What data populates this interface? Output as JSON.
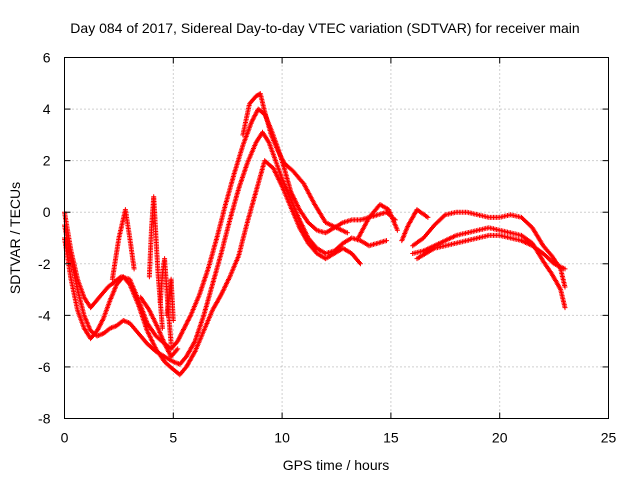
{
  "chart_data": {
    "type": "scatter",
    "title": "Day 084 of 2017, Sidereal Day-to-day VTEC variation (SDTVAR) for receiver main",
    "xlabel": "GPS time / hours",
    "ylabel": "SDTVAR / TECUs",
    "xlim": [
      0,
      25
    ],
    "ylim": [
      -8,
      6
    ],
    "xticks": [
      0,
      5,
      10,
      15,
      20,
      25
    ],
    "xtick_labels": [
      "0",
      "5",
      "10",
      "15",
      "20",
      "25"
    ],
    "yticks": [
      -8,
      -6,
      -4,
      -2,
      0,
      2,
      4,
      6
    ],
    "ytick_labels": [
      "-8",
      "-6",
      "-4",
      "-2",
      "0",
      "2",
      "4",
      "6"
    ],
    "grid": true,
    "marker": "+",
    "series": [
      {
        "name": "track-1",
        "color": "#ff0000",
        "x": [
          0.0,
          0.3,
          0.6,
          0.9,
          1.2,
          1.4,
          1.7,
          2.0,
          2.3,
          2.6,
          3.0,
          3.4,
          3.8,
          4.2,
          4.6,
          4.9,
          5.2,
          5.5,
          5.8,
          6.2,
          6.6,
          7.0,
          7.4,
          7.8,
          8.2,
          8.6,
          8.9,
          9.2,
          9.5,
          9.8,
          10.1,
          10.4,
          10.8,
          11.2,
          11.6,
          12.0,
          12.4,
          12.8,
          13.2,
          13.6,
          14.0,
          14.4,
          14.8,
          15.2
        ],
        "y": [
          0.0,
          -1.5,
          -2.6,
          -3.3,
          -3.7,
          -3.5,
          -3.2,
          -2.9,
          -2.7,
          -2.5,
          -2.6,
          -3.4,
          -4.3,
          -4.8,
          -5.1,
          -5.3,
          -5.0,
          -4.5,
          -4.0,
          -3.2,
          -2.2,
          -1.0,
          0.3,
          1.5,
          2.6,
          3.5,
          4.0,
          3.8,
          3.2,
          2.5,
          1.7,
          0.8,
          0.1,
          -0.4,
          -0.7,
          -0.8,
          -0.6,
          -0.4,
          -0.3,
          -0.3,
          -0.2,
          -0.1,
          0.0,
          -0.3
        ]
      },
      {
        "name": "track-2",
        "color": "#ff0000",
        "x": [
          0.0,
          0.3,
          0.6,
          0.9,
          1.2,
          1.5,
          1.8,
          2.1,
          2.4,
          2.7,
          3.0,
          3.4,
          3.8,
          4.2,
          4.6,
          5.0,
          5.3,
          5.6,
          6.0,
          6.4,
          6.8,
          7.2,
          7.6,
          8.0,
          8.4,
          8.8,
          9.1,
          9.4,
          9.7,
          10.0,
          10.4,
          10.8,
          11.2,
          11.6,
          12.0,
          12.4,
          12.8,
          13.2,
          13.6,
          14.0,
          14.4,
          14.8
        ],
        "y": [
          -0.5,
          -1.8,
          -3.0,
          -4.0,
          -4.6,
          -4.8,
          -4.7,
          -4.5,
          -4.4,
          -4.2,
          -4.3,
          -4.7,
          -5.1,
          -5.4,
          -5.6,
          -5.8,
          -5.9,
          -5.6,
          -5.0,
          -4.0,
          -2.8,
          -1.6,
          -0.3,
          0.9,
          1.9,
          2.7,
          3.1,
          2.7,
          2.0,
          1.3,
          0.5,
          -0.3,
          -1.0,
          -1.4,
          -1.6,
          -1.5,
          -1.2,
          -1.0,
          -1.1,
          -1.3,
          -1.2,
          -1.1
        ]
      },
      {
        "name": "track-3",
        "color": "#ff0000",
        "x": [
          0.0,
          0.3,
          0.6,
          0.9,
          1.2,
          1.5,
          1.8,
          2.1,
          2.4,
          2.7,
          3.0,
          3.4,
          3.8,
          4.2,
          4.6,
          5.0,
          5.3,
          5.6,
          6.0,
          6.4,
          6.8,
          7.2,
          7.6,
          8.0,
          8.4,
          8.8,
          9.2,
          9.6,
          10.0,
          10.4,
          10.8,
          11.2,
          11.6,
          12.0,
          12.4,
          12.8,
          13.2,
          13.6
        ],
        "y": [
          -1.0,
          -2.6,
          -3.8,
          -4.5,
          -4.9,
          -4.6,
          -4.1,
          -3.4,
          -2.8,
          -2.5,
          -2.8,
          -3.6,
          -4.6,
          -5.3,
          -5.8,
          -6.1,
          -6.3,
          -6.0,
          -5.4,
          -4.6,
          -3.8,
          -3.2,
          -2.5,
          -1.7,
          -0.4,
          0.8,
          2.0,
          1.7,
          1.0,
          0.2,
          -0.6,
          -1.2,
          -1.6,
          -1.8,
          -1.6,
          -1.4,
          -1.6,
          -2.0
        ]
      },
      {
        "name": "track-4",
        "color": "#ff0000",
        "x": [
          8.2,
          8.5,
          8.8,
          9.0,
          9.2,
          9.5,
          9.8,
          10.1,
          10.5,
          11.0,
          11.5,
          12.0,
          12.5,
          13.0
        ],
        "y": [
          3.0,
          4.2,
          4.5,
          4.6,
          3.9,
          3.0,
          2.4,
          1.9,
          1.6,
          1.1,
          0.3,
          -0.4,
          -0.6,
          -0.8
        ]
      },
      {
        "name": "track-5",
        "color": "#ff0000",
        "x": [
          16.0,
          16.5,
          17.0,
          17.5,
          18.0,
          18.5,
          19.0,
          19.5,
          20.0,
          20.5,
          21.0,
          21.5,
          22.0,
          22.4,
          22.8,
          23.0
        ],
        "y": [
          -1.3,
          -1.0,
          -0.5,
          -0.1,
          0.0,
          0.0,
          -0.1,
          -0.2,
          -0.2,
          -0.1,
          -0.2,
          -0.6,
          -1.3,
          -1.7,
          -2.2,
          -2.9
        ]
      },
      {
        "name": "track-6",
        "color": "#ff0000",
        "x": [
          16.0,
          16.5,
          17.0,
          17.5,
          18.0,
          18.5,
          19.0,
          19.5,
          20.0,
          20.5,
          21.0,
          21.5,
          22.0,
          22.4,
          22.8,
          23.0
        ],
        "y": [
          -1.6,
          -1.5,
          -1.3,
          -1.1,
          -0.9,
          -0.8,
          -0.7,
          -0.6,
          -0.7,
          -0.8,
          -0.9,
          -1.2,
          -1.9,
          -2.4,
          -3.0,
          -3.7
        ]
      },
      {
        "name": "track-7",
        "color": "#ff0000",
        "x": [
          16.2,
          16.6,
          17.0,
          17.5,
          18.0,
          18.5,
          19.0,
          19.5,
          20.0,
          20.5,
          21.0,
          21.5,
          22.0,
          22.5,
          23.0
        ],
        "y": [
          -1.8,
          -1.6,
          -1.4,
          -1.3,
          -1.2,
          -1.1,
          -1.0,
          -0.9,
          -0.9,
          -1.0,
          -1.1,
          -1.3,
          -1.6,
          -2.0,
          -2.2
        ]
      },
      {
        "name": "spike-a",
        "color": "#ff0000",
        "x": [
          2.2,
          2.5,
          2.8,
          3.0,
          3.2
        ],
        "y": [
          -2.6,
          -1.0,
          0.1,
          -1.0,
          -2.2
        ]
      },
      {
        "name": "spike-b",
        "color": "#ff0000",
        "x": [
          3.9,
          4.0,
          4.1,
          4.3,
          4.5
        ],
        "y": [
          -2.5,
          -0.6,
          0.6,
          -2.4,
          -4.5
        ]
      },
      {
        "name": "spike-c",
        "color": "#ff0000",
        "x": [
          4.4,
          4.5,
          4.6,
          4.75,
          4.9
        ],
        "y": [
          -3.5,
          -2.4,
          -1.8,
          -3.6,
          -5.1
        ]
      },
      {
        "name": "spike-d",
        "color": "#ff0000",
        "x": [
          4.7,
          4.8,
          4.9,
          5.0
        ],
        "y": [
          -4.0,
          -3.3,
          -2.6,
          -4.2
        ]
      },
      {
        "name": "dip-b",
        "color": "#ff0000",
        "x": [
          3.5,
          3.9,
          4.3,
          4.6,
          4.9,
          5.2
        ],
        "y": [
          -3.3,
          -3.8,
          -4.5,
          -5.1,
          -5.6,
          -5.3
        ]
      },
      {
        "name": "arc-left",
        "color": "#ff0000",
        "x": [
          13.5,
          14.0,
          14.5,
          14.9,
          15.3
        ],
        "y": [
          -1.0,
          -0.2,
          0.3,
          0.1,
          -0.7
        ]
      },
      {
        "name": "arc-right",
        "color": "#ff0000",
        "x": [
          15.5,
          15.8,
          16.2,
          16.7
        ],
        "y": [
          -1.1,
          -0.5,
          0.1,
          -0.2
        ]
      }
    ]
  }
}
